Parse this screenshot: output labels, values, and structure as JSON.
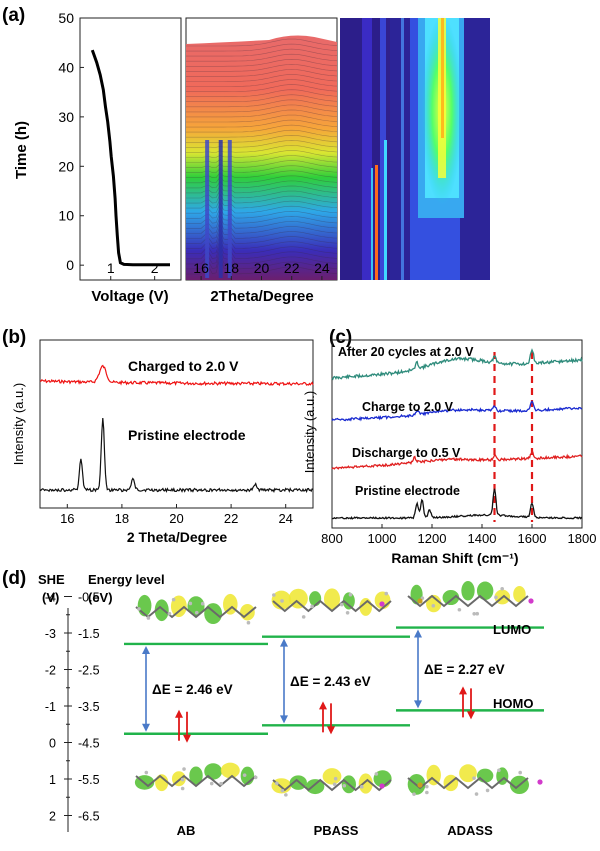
{
  "panel_labels": {
    "a": "(a)",
    "b": "(b)",
    "c": "(c)",
    "d": "(d)"
  },
  "chart_data": [
    {
      "id": "a1",
      "type": "line",
      "xlabel": "Voltage (V)",
      "ylabel": "Time (h)",
      "xlim": [
        0.3,
        2.6
      ],
      "ylim": [
        -3,
        50
      ],
      "xticks": [
        "1",
        "2"
      ],
      "yticks": [
        "0",
        "10",
        "20",
        "30",
        "40",
        "50"
      ],
      "series": [
        {
          "x": [
            0.58,
            0.62,
            0.68,
            0.76,
            0.83,
            0.88,
            0.93,
            0.98,
            1.01,
            1.06,
            1.1,
            1.12,
            1.15,
            1.18,
            1.22,
            1.3,
            1.5,
            1.8,
            2.0,
            2.1,
            2.35
          ],
          "y": [
            43.5,
            42.5,
            41,
            38.5,
            35.5,
            32,
            29,
            25,
            22,
            18,
            13.5,
            10,
            6,
            2.5,
            0.5,
            0.15,
            0.1,
            0.1,
            0.1,
            0.1,
            0.1
          ]
        }
      ]
    },
    {
      "id": "a2",
      "type": "line",
      "xlabel": "2Theta/Degree",
      "xlim": [
        15,
        25
      ],
      "xticks": [
        "16",
        "18",
        "20",
        "22",
        "24"
      ],
      "peaks_deg": [
        16.4,
        17.3,
        17.9
      ]
    },
    {
      "id": "a3",
      "type": "heatmap",
      "colormap": "jet",
      "streaks": [
        "blue",
        "cyan",
        "yellow-green-core"
      ]
    },
    {
      "id": "b",
      "type": "line",
      "xlabel": "2 Theta/Degree",
      "ylabel": "Intensity (a.u.)",
      "xlim": [
        15,
        25
      ],
      "xticks": [
        "16",
        "18",
        "20",
        "22",
        "24"
      ],
      "series": [
        {
          "name": "Charged to 2.0 V",
          "color": "#ee1111",
          "peaks": [
            [
              17.3,
              1.0
            ]
          ],
          "baseline": 0.62
        },
        {
          "name": "Pristine electrode",
          "color": "#111111",
          "peaks": [
            [
              16.5,
              0.55
            ],
            [
              17.3,
              1.3
            ],
            [
              18.4,
              0.2
            ],
            [
              22.9,
              0.1
            ]
          ],
          "baseline": 0.0
        }
      ]
    },
    {
      "id": "c",
      "type": "line",
      "xlabel": "Raman Shift (cm⁻¹)",
      "ylabel": "Intensity (a.u.)",
      "xlim": [
        800,
        1800
      ],
      "xticks": [
        "800",
        "1000",
        "1200",
        "1400",
        "1600",
        "1800"
      ],
      "dashed_lines_cm": [
        1450,
        1600
      ],
      "series": [
        {
          "name": "After 20 cycles at 2.0 V",
          "color": "#2e8b7b"
        },
        {
          "name": "Charge to 2.0 V",
          "color": "#1a2bd0"
        },
        {
          "name": "Discharge to 0.5 V",
          "color": "#e02020"
        },
        {
          "name": "Pristine electrode",
          "color": "#111111"
        }
      ]
    },
    {
      "id": "d",
      "type": "diagram",
      "axis1_title": [
        "SHE",
        "(V)"
      ],
      "axis2_title": [
        "Energy level",
        "(eV)"
      ],
      "she_ticks": [
        "-4",
        "-3",
        "-2",
        "-1",
        "0",
        "1",
        "2"
      ],
      "ev_ticks": [
        "-0.5",
        "-1.5",
        "-2.5",
        "-3.5",
        "-4.5",
        "-5.5",
        "-6.5"
      ],
      "molecules": [
        {
          "name": "AB",
          "lumo_ev": -1.8,
          "homo_ev": -4.26,
          "gap_label": "ΔE = 2.46 eV"
        },
        {
          "name": "PBASS",
          "lumo_ev": -1.6,
          "homo_ev": -4.03,
          "gap_label": "ΔE = 2.43 eV"
        },
        {
          "name": "ADASS",
          "lumo_ev": -1.35,
          "homo_ev": -3.62,
          "gap_label": "ΔE = 2.27 eV"
        }
      ],
      "level_labels": {
        "lumo": "LUMO",
        "homo": "HOMO"
      }
    }
  ]
}
